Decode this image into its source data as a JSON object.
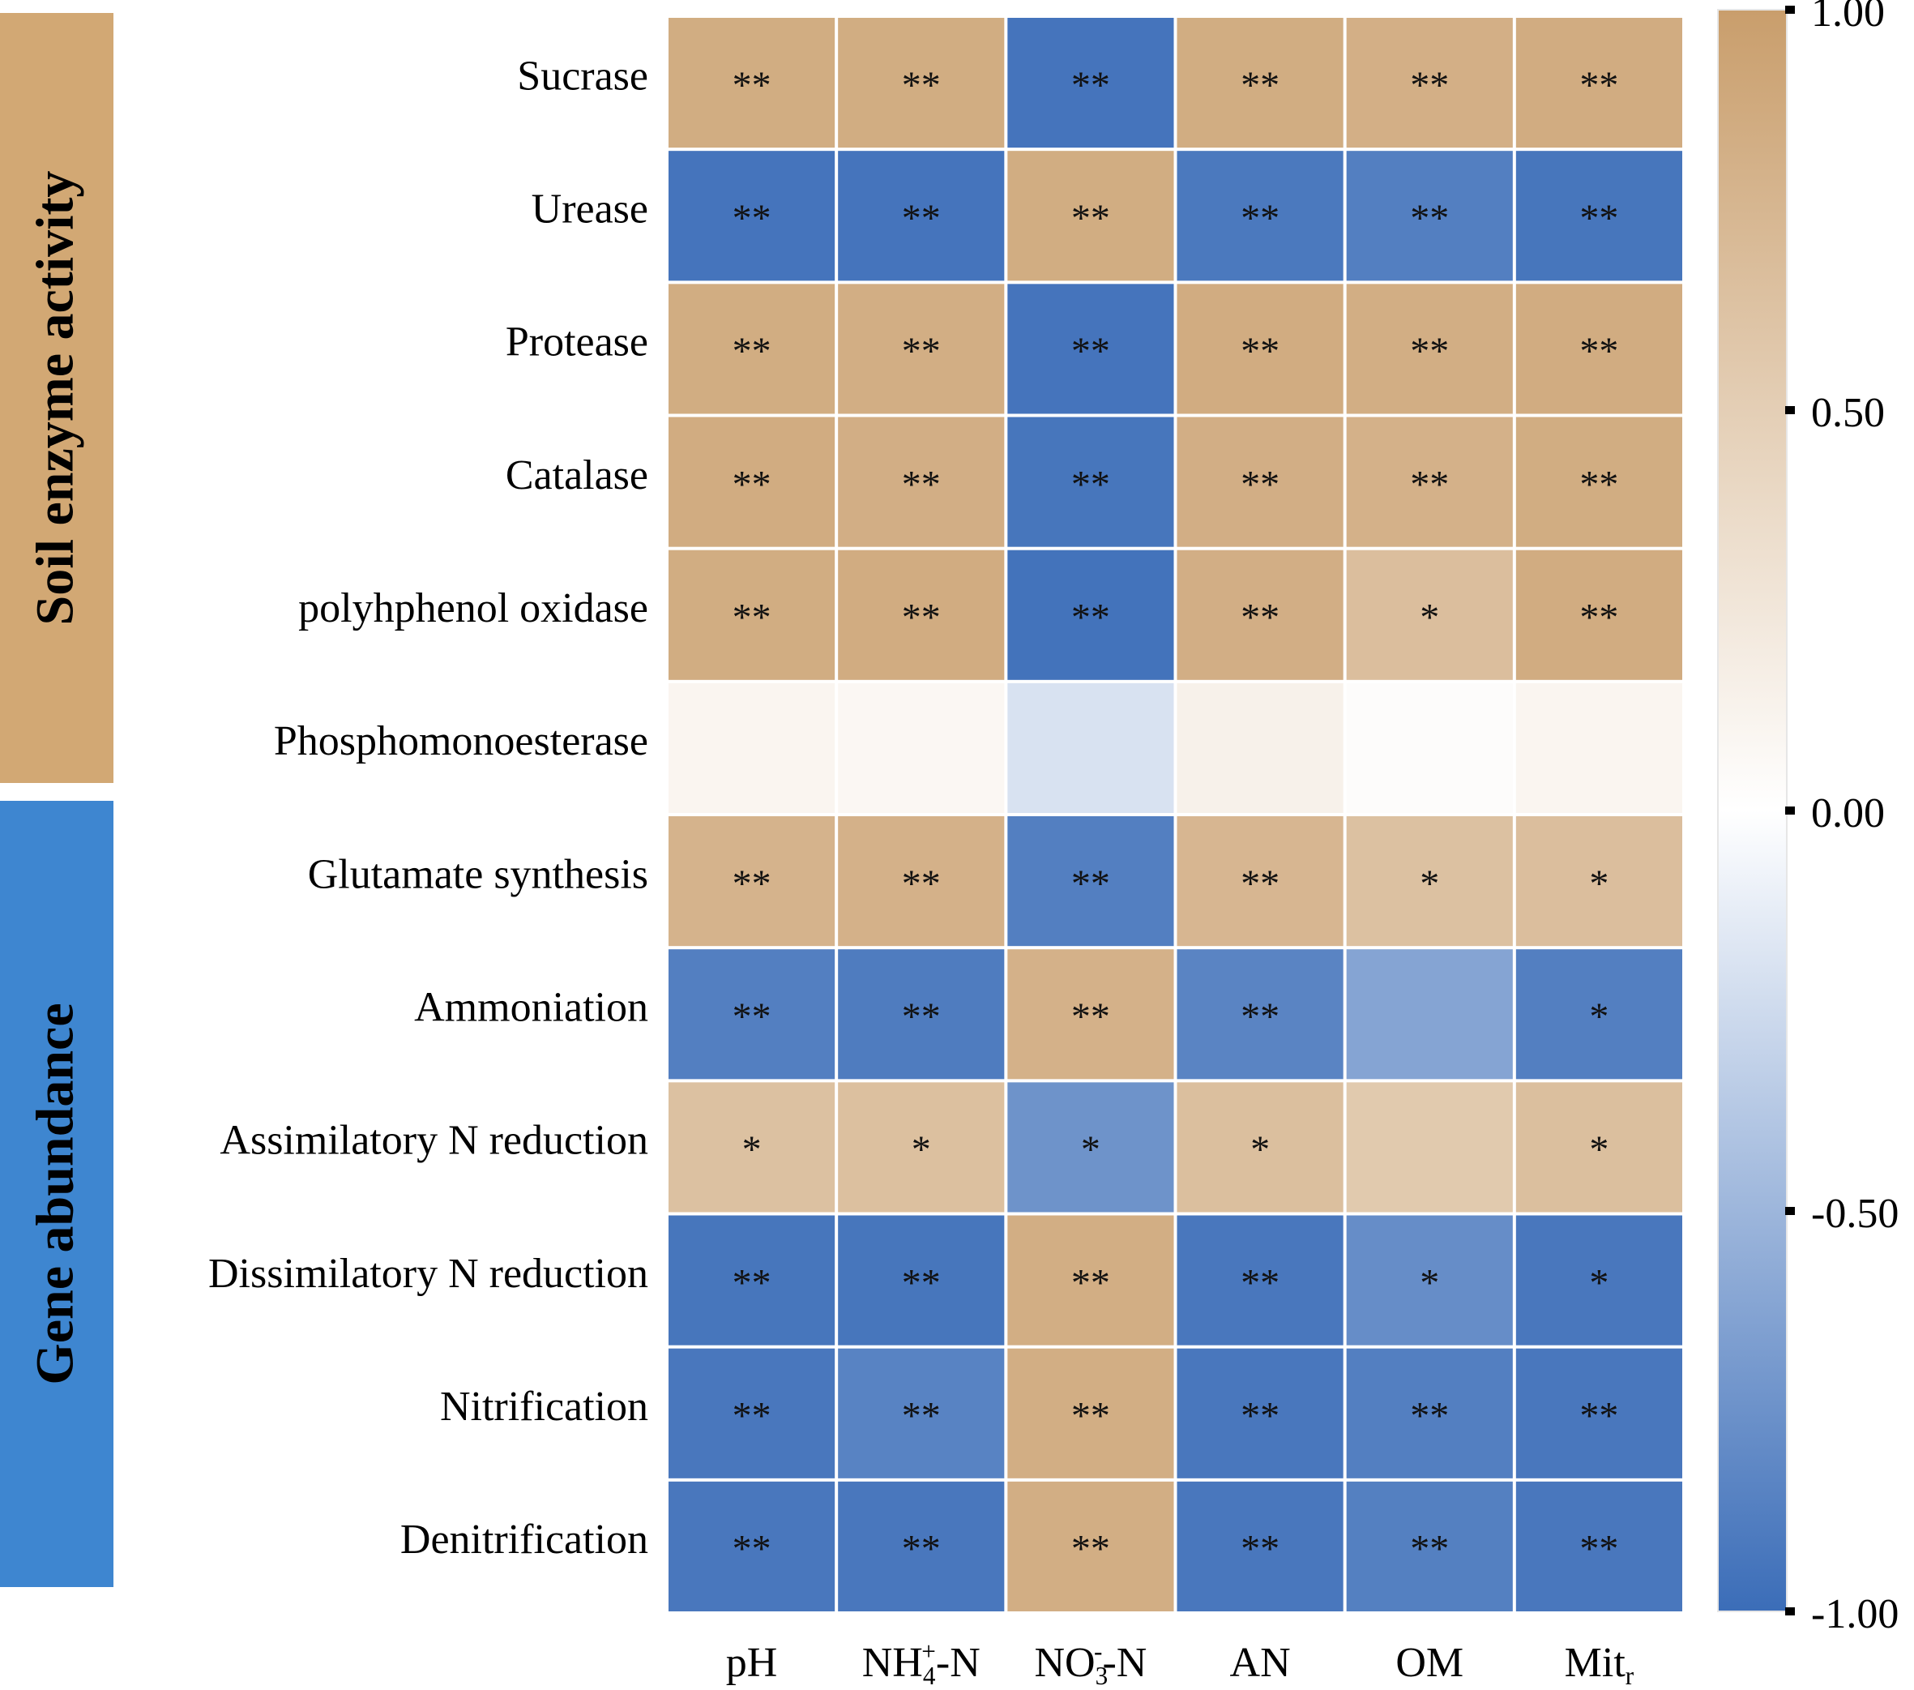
{
  "chart_data": {
    "type": "heatmap",
    "title": "",
    "groups": [
      {
        "label": "Soil enzyme activity",
        "color": "#D2A874",
        "row_span": [
          0,
          5
        ]
      },
      {
        "label": "Gene abundance",
        "color": "#3E86D0",
        "row_span": [
          6,
          11
        ]
      }
    ],
    "rows": [
      "Sucrase",
      "Urease",
      "Protease",
      "Catalase",
      "polyhphenol oxidase",
      "Phosphomonoesterase",
      "Glutamate synthesis",
      "Ammoniation",
      "Assimilatory N reduction",
      "Dissimilatory N reduction",
      "Nitrification",
      "Denitrification"
    ],
    "columns": [
      {
        "text": "pH"
      },
      {
        "text": "NH",
        "sub": "4",
        "sup": "+",
        "tail": "-N"
      },
      {
        "text": "NO",
        "sub": "3",
        "sup": "-",
        "tail": "-N"
      },
      {
        "text": "AN"
      },
      {
        "text": "OM"
      },
      {
        "text": "Mit",
        "sub": "r"
      }
    ],
    "values": [
      [
        0.85,
        0.85,
        -0.95,
        0.85,
        0.82,
        0.86
      ],
      [
        -0.95,
        -0.95,
        0.85,
        -0.92,
        -0.88,
        -0.94
      ],
      [
        0.85,
        0.84,
        -0.95,
        0.86,
        0.84,
        0.86
      ],
      [
        0.86,
        0.83,
        -0.94,
        0.83,
        0.8,
        0.85
      ],
      [
        0.85,
        0.86,
        -0.96,
        0.83,
        0.67,
        0.86
      ],
      [
        0.1,
        0.08,
        -0.2,
        0.14,
        0.03,
        0.1
      ],
      [
        0.78,
        0.8,
        -0.88,
        0.75,
        0.64,
        0.67
      ],
      [
        -0.88,
        -0.9,
        0.8,
        -0.84,
        -0.62,
        -0.88
      ],
      [
        0.64,
        0.65,
        -0.74,
        0.66,
        0.55,
        0.66
      ],
      [
        -0.94,
        -0.94,
        0.84,
        -0.93,
        -0.78,
        -0.93
      ],
      [
        -0.93,
        -0.85,
        0.84,
        -0.93,
        -0.88,
        -0.93
      ],
      [
        -0.93,
        -0.93,
        0.84,
        -0.93,
        -0.87,
        -0.93
      ]
    ],
    "significance": [
      [
        "**",
        "**",
        "**",
        "**",
        "**",
        "**"
      ],
      [
        "**",
        "**",
        "**",
        "**",
        "**",
        "**"
      ],
      [
        "**",
        "**",
        "**",
        "**",
        "**",
        "**"
      ],
      [
        "**",
        "**",
        "**",
        "**",
        "**",
        "**"
      ],
      [
        "**",
        "**",
        "**",
        "**",
        "*",
        "**"
      ],
      [
        "",
        "",
        "",
        "",
        "",
        ""
      ],
      [
        "**",
        "**",
        "**",
        "**",
        "*",
        "*"
      ],
      [
        "**",
        "**",
        "**",
        "**",
        "",
        "*"
      ],
      [
        "*",
        "*",
        "*",
        "*",
        "",
        "*"
      ],
      [
        "**",
        "**",
        "**",
        "**",
        "*",
        "*"
      ],
      [
        "**",
        "**",
        "**",
        "**",
        "**",
        "**"
      ],
      [
        "**",
        "**",
        "**",
        "**",
        "**",
        "**"
      ]
    ],
    "colorbar": {
      "range": [
        -1.0,
        1.0
      ],
      "ticks": [
        "1.00",
        "0.50",
        "0.00",
        "-0.50",
        "-1.00"
      ],
      "tick_values": [
        1.0,
        0.5,
        0.0,
        -0.5,
        -1.0
      ],
      "colors": {
        "low": "#3B6DB8",
        "mid": "#FFFFFF",
        "high": "#C99E6C"
      }
    }
  }
}
